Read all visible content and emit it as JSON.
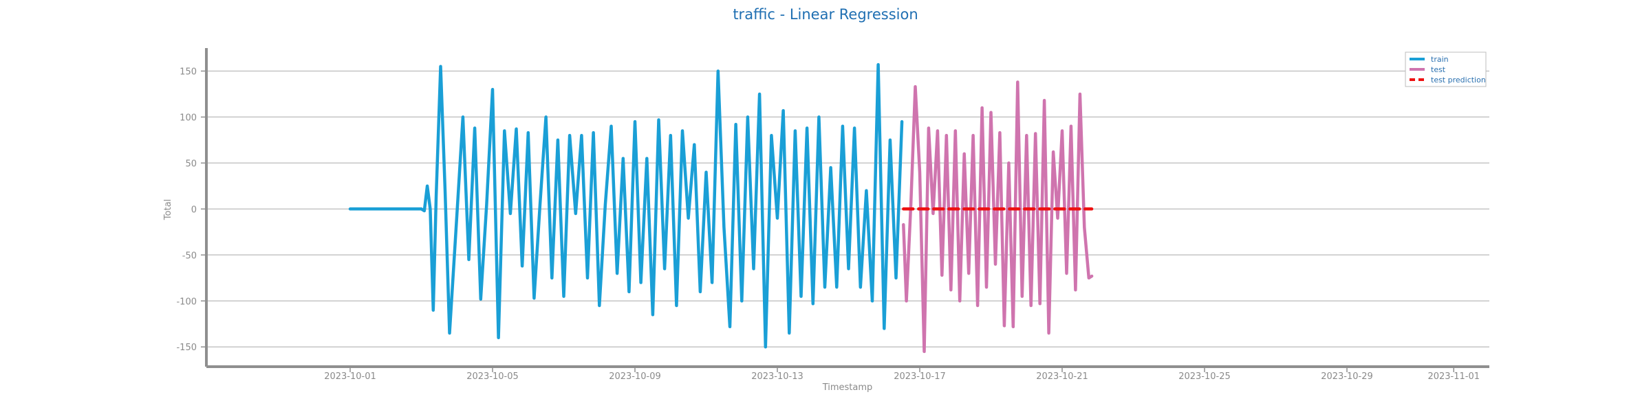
{
  "chart_data": {
    "type": "line",
    "title": "traffic - Linear Regression",
    "xlabel": "Timestamp",
    "ylabel": "Total",
    "xlim": [
      "2023-09-27",
      "2023-11-02"
    ],
    "ylim": [
      -170,
      175
    ],
    "x_ticks": [
      "2023-10-01",
      "2023-10-05",
      "2023-10-09",
      "2023-10-13",
      "2023-10-17",
      "2023-10-21",
      "2023-10-25",
      "2023-10-29",
      "2023-11-01"
    ],
    "y_ticks": [
      -150,
      -100,
      -50,
      0,
      50,
      100,
      150
    ],
    "grid": "horizontal",
    "legend_position": "top-right",
    "colors": {
      "train": "#1a9fd6",
      "test": "#cf74ae",
      "test prediction": "#ee1111",
      "title": "#1f6fb2"
    },
    "series": [
      {
        "name": "train",
        "style": "solid",
        "points": [
          [
            "2023-10-01",
            0
          ],
          [
            "2023-10-02",
            0
          ],
          [
            "2023-10-03",
            0
          ],
          [
            "2023-10-03 02:00",
            -2
          ],
          [
            "2023-10-03 04:00",
            25
          ],
          [
            "2023-10-03 06:00",
            0
          ],
          [
            "2023-10-03 08:00",
            -110
          ],
          [
            "2023-10-03 10:00",
            15
          ],
          [
            "2023-10-03 13:00",
            155
          ],
          [
            "2023-10-03 16:00",
            20
          ],
          [
            "2023-10-03 19:00",
            -135
          ],
          [
            "2023-10-04 00:00",
            -5
          ],
          [
            "2023-10-04 04:00",
            100
          ],
          [
            "2023-10-04 08:00",
            -55
          ],
          [
            "2023-10-04 12:00",
            88
          ],
          [
            "2023-10-04 16:00",
            -98
          ],
          [
            "2023-10-04 20:00",
            5
          ],
          [
            "2023-10-05 00:00",
            130
          ],
          [
            "2023-10-05 04:00",
            -140
          ],
          [
            "2023-10-05 08:00",
            85
          ],
          [
            "2023-10-05 12:00",
            -5
          ],
          [
            "2023-10-05 16:00",
            87
          ],
          [
            "2023-10-05 20:00",
            -62
          ],
          [
            "2023-10-06 00:00",
            83
          ],
          [
            "2023-10-06 04:00",
            -97
          ],
          [
            "2023-10-06 08:00",
            5
          ],
          [
            "2023-10-06 12:00",
            100
          ],
          [
            "2023-10-06 16:00",
            -75
          ],
          [
            "2023-10-06 20:00",
            75
          ],
          [
            "2023-10-07 00:00",
            -95
          ],
          [
            "2023-10-07 04:00",
            80
          ],
          [
            "2023-10-07 08:00",
            -5
          ],
          [
            "2023-10-07 12:00",
            80
          ],
          [
            "2023-10-07 16:00",
            -75
          ],
          [
            "2023-10-07 20:00",
            83
          ],
          [
            "2023-10-08 00:00",
            -105
          ],
          [
            "2023-10-08 04:00",
            5
          ],
          [
            "2023-10-08 08:00",
            90
          ],
          [
            "2023-10-08 12:00",
            -70
          ],
          [
            "2023-10-08 16:00",
            55
          ],
          [
            "2023-10-08 20:00",
            -90
          ],
          [
            "2023-10-09 00:00",
            95
          ],
          [
            "2023-10-09 04:00",
            -80
          ],
          [
            "2023-10-09 08:00",
            55
          ],
          [
            "2023-10-09 12:00",
            -115
          ],
          [
            "2023-10-09 16:00",
            97
          ],
          [
            "2023-10-09 20:00",
            -65
          ],
          [
            "2023-10-10 00:00",
            80
          ],
          [
            "2023-10-10 04:00",
            -105
          ],
          [
            "2023-10-10 08:00",
            85
          ],
          [
            "2023-10-10 12:00",
            -10
          ],
          [
            "2023-10-10 16:00",
            70
          ],
          [
            "2023-10-10 20:00",
            -90
          ],
          [
            "2023-10-11 00:00",
            40
          ],
          [
            "2023-10-11 04:00",
            -80
          ],
          [
            "2023-10-11 08:00",
            150
          ],
          [
            "2023-10-11 12:00",
            -20
          ],
          [
            "2023-10-11 16:00",
            -128
          ],
          [
            "2023-10-11 20:00",
            92
          ],
          [
            "2023-10-12 00:00",
            -100
          ],
          [
            "2023-10-12 04:00",
            100
          ],
          [
            "2023-10-12 08:00",
            -65
          ],
          [
            "2023-10-12 12:00",
            125
          ],
          [
            "2023-10-12 16:00",
            -150
          ],
          [
            "2023-10-12 20:00",
            80
          ],
          [
            "2023-10-13 00:00",
            -10
          ],
          [
            "2023-10-13 04:00",
            107
          ],
          [
            "2023-10-13 08:00",
            -135
          ],
          [
            "2023-10-13 12:00",
            85
          ],
          [
            "2023-10-13 16:00",
            -95
          ],
          [
            "2023-10-13 20:00",
            88
          ],
          [
            "2023-10-14 00:00",
            -103
          ],
          [
            "2023-10-14 04:00",
            100
          ],
          [
            "2023-10-14 08:00",
            -85
          ],
          [
            "2023-10-14 12:00",
            45
          ],
          [
            "2023-10-14 16:00",
            -85
          ],
          [
            "2023-10-14 20:00",
            90
          ],
          [
            "2023-10-15 00:00",
            -65
          ],
          [
            "2023-10-15 04:00",
            88
          ],
          [
            "2023-10-15 08:00",
            -85
          ],
          [
            "2023-10-15 12:00",
            20
          ],
          [
            "2023-10-15 16:00",
            -100
          ],
          [
            "2023-10-15 20:00",
            157
          ],
          [
            "2023-10-16 00:00",
            -130
          ],
          [
            "2023-10-16 04:00",
            75
          ],
          [
            "2023-10-16 08:00",
            -75
          ],
          [
            "2023-10-16 12:00",
            95
          ]
        ]
      },
      {
        "name": "test",
        "style": "solid",
        "points": [
          [
            "2023-10-16 13:00",
            -17
          ],
          [
            "2023-10-16 15:00",
            -100
          ],
          [
            "2023-10-16 18:00",
            5
          ],
          [
            "2023-10-16 21:00",
            133
          ],
          [
            "2023-10-17 00:00",
            40
          ],
          [
            "2023-10-17 03:00",
            -155
          ],
          [
            "2023-10-17 06:00",
            88
          ],
          [
            "2023-10-17 09:00",
            -5
          ],
          [
            "2023-10-17 12:00",
            85
          ],
          [
            "2023-10-17 15:00",
            -72
          ],
          [
            "2023-10-17 18:00",
            80
          ],
          [
            "2023-10-17 21:00",
            -88
          ],
          [
            "2023-10-18 00:00",
            85
          ],
          [
            "2023-10-18 03:00",
            -100
          ],
          [
            "2023-10-18 06:00",
            60
          ],
          [
            "2023-10-18 09:00",
            -70
          ],
          [
            "2023-10-18 12:00",
            80
          ],
          [
            "2023-10-18 15:00",
            -105
          ],
          [
            "2023-10-18 18:00",
            110
          ],
          [
            "2023-10-18 21:00",
            -85
          ],
          [
            "2023-10-19 00:00",
            105
          ],
          [
            "2023-10-19 03:00",
            -60
          ],
          [
            "2023-10-19 06:00",
            83
          ],
          [
            "2023-10-19 09:00",
            -127
          ],
          [
            "2023-10-19 12:00",
            50
          ],
          [
            "2023-10-19 15:00",
            -128
          ],
          [
            "2023-10-19 18:00",
            138
          ],
          [
            "2023-10-19 21:00",
            -95
          ],
          [
            "2023-10-20 00:00",
            80
          ],
          [
            "2023-10-20 03:00",
            -105
          ],
          [
            "2023-10-20 06:00",
            82
          ],
          [
            "2023-10-20 09:00",
            -103
          ],
          [
            "2023-10-20 12:00",
            118
          ],
          [
            "2023-10-20 15:00",
            -135
          ],
          [
            "2023-10-20 18:00",
            62
          ],
          [
            "2023-10-20 21:00",
            -10
          ],
          [
            "2023-10-21 00:00",
            85
          ],
          [
            "2023-10-21 03:00",
            -70
          ],
          [
            "2023-10-21 06:00",
            90
          ],
          [
            "2023-10-21 09:00",
            -88
          ],
          [
            "2023-10-21 12:00",
            125
          ],
          [
            "2023-10-21 15:00",
            -20
          ],
          [
            "2023-10-21 18:00",
            -75
          ],
          [
            "2023-10-21 20:00",
            -73
          ]
        ]
      },
      {
        "name": "test prediction",
        "style": "dashed",
        "points": [
          [
            "2023-10-16 13:00",
            0
          ],
          [
            "2023-10-21 20:00",
            0
          ]
        ]
      }
    ]
  }
}
